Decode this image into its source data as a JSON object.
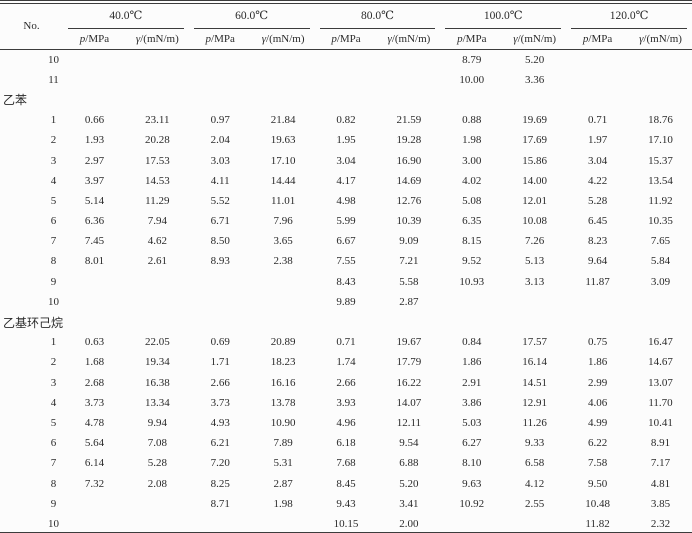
{
  "page": {
    "background": "#fcfcfc",
    "rule_color": "#3c3c3c",
    "text_color": "#2a2a2a"
  },
  "table": {
    "no_header": "No.",
    "temp_groups": [
      "40.0℃",
      "60.0℃",
      "80.0℃",
      "100.0℃",
      "120.0℃"
    ],
    "p_symbol": "p",
    "p_unit": "/MPa",
    "gamma_symbol": "γ",
    "gamma_unit": "/(mN/m)",
    "rows": [
      {
        "no": "10",
        "cells": [
          "",
          "",
          "",
          "",
          "",
          "",
          "8.79",
          "5.20",
          "",
          ""
        ]
      },
      {
        "no": "11",
        "cells": [
          "",
          "",
          "",
          "",
          "",
          "",
          "10.00",
          "3.36",
          "",
          ""
        ]
      },
      {
        "section": "乙苯"
      },
      {
        "no": "1",
        "cells": [
          "0.66",
          "23.11",
          "0.97",
          "21.84",
          "0.82",
          "21.59",
          "0.88",
          "19.69",
          "0.71",
          "18.76"
        ]
      },
      {
        "no": "2",
        "cells": [
          "1.93",
          "20.28",
          "2.04",
          "19.63",
          "1.95",
          "19.28",
          "1.98",
          "17.69",
          "1.97",
          "17.10"
        ]
      },
      {
        "no": "3",
        "cells": [
          "2.97",
          "17.53",
          "3.03",
          "17.10",
          "3.04",
          "16.90",
          "3.00",
          "15.86",
          "3.04",
          "15.37"
        ]
      },
      {
        "no": "4",
        "cells": [
          "3.97",
          "14.53",
          "4.11",
          "14.44",
          "4.17",
          "14.69",
          "4.02",
          "14.00",
          "4.22",
          "13.54"
        ]
      },
      {
        "no": "5",
        "cells": [
          "5.14",
          "11.29",
          "5.52",
          "11.01",
          "4.98",
          "12.76",
          "5.08",
          "12.01",
          "5.28",
          "11.92"
        ]
      },
      {
        "no": "6",
        "cells": [
          "6.36",
          "7.94",
          "6.71",
          "7.96",
          "5.99",
          "10.39",
          "6.35",
          "10.08",
          "6.45",
          "10.35"
        ]
      },
      {
        "no": "7",
        "cells": [
          "7.45",
          "4.62",
          "8.50",
          "3.65",
          "6.67",
          "9.09",
          "8.15",
          "7.26",
          "8.23",
          "7.65"
        ]
      },
      {
        "no": "8",
        "cells": [
          "8.01",
          "2.61",
          "8.93",
          "2.38",
          "7.55",
          "7.21",
          "9.52",
          "5.13",
          "9.64",
          "5.84"
        ]
      },
      {
        "no": "9",
        "cells": [
          "",
          "",
          "",
          "",
          "8.43",
          "5.58",
          "10.93",
          "3.13",
          "11.87",
          "3.09"
        ]
      },
      {
        "no": "10",
        "cells": [
          "",
          "",
          "",
          "",
          "9.89",
          "2.87",
          "",
          "",
          "",
          ""
        ]
      },
      {
        "section": "乙基环己烷"
      },
      {
        "no": "1",
        "cells": [
          "0.63",
          "22.05",
          "0.69",
          "20.89",
          "0.71",
          "19.67",
          "0.84",
          "17.57",
          "0.75",
          "16.47"
        ]
      },
      {
        "no": "2",
        "cells": [
          "1.68",
          "19.34",
          "1.71",
          "18.23",
          "1.74",
          "17.79",
          "1.86",
          "16.14",
          "1.86",
          "14.67"
        ]
      },
      {
        "no": "3",
        "cells": [
          "2.68",
          "16.38",
          "2.66",
          "16.16",
          "2.66",
          "16.22",
          "2.91",
          "14.51",
          "2.99",
          "13.07"
        ]
      },
      {
        "no": "4",
        "cells": [
          "3.73",
          "13.34",
          "3.73",
          "13.78",
          "3.93",
          "14.07",
          "3.86",
          "12.91",
          "4.06",
          "11.70"
        ]
      },
      {
        "no": "5",
        "cells": [
          "4.78",
          "9.94",
          "4.93",
          "10.90",
          "4.96",
          "12.11",
          "5.03",
          "11.26",
          "4.99",
          "10.41"
        ]
      },
      {
        "no": "6",
        "cells": [
          "5.64",
          "7.08",
          "6.21",
          "7.89",
          "6.18",
          "9.54",
          "6.27",
          "9.33",
          "6.22",
          "8.91"
        ]
      },
      {
        "no": "7",
        "cells": [
          "6.14",
          "5.28",
          "7.20",
          "5.31",
          "7.68",
          "6.88",
          "8.10",
          "6.58",
          "7.58",
          "7.17"
        ]
      },
      {
        "no": "8",
        "cells": [
          "7.32",
          "2.08",
          "8.25",
          "2.87",
          "8.45",
          "5.20",
          "9.63",
          "4.12",
          "9.50",
          "4.81"
        ]
      },
      {
        "no": "9",
        "cells": [
          "",
          "",
          "8.71",
          "1.98",
          "9.43",
          "3.41",
          "10.92",
          "2.55",
          "10.48",
          "3.85"
        ]
      },
      {
        "no": "10",
        "cells": [
          "",
          "",
          "",
          "",
          "10.15",
          "2.00",
          "",
          "",
          "11.82",
          "2.32"
        ]
      }
    ]
  }
}
